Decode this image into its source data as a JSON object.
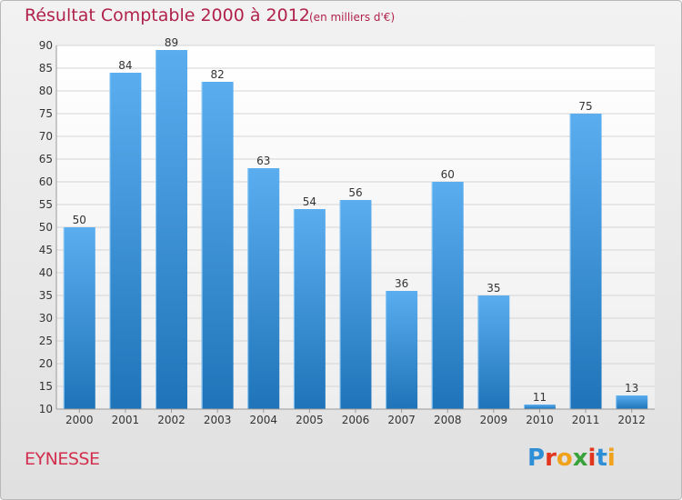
{
  "header": {
    "title": "Résultat Comptable 2000 à 2012",
    "subtitle": "(en milliers d'€)"
  },
  "footer": {
    "commune": "EYNESSE",
    "logo_letters": [
      "P",
      "r",
      "o",
      "x",
      "i",
      "t",
      "i"
    ],
    "logo_colors": [
      "#2f8fd6",
      "#e2351d",
      "#f0a21a",
      "#3aa23a",
      "#e2351d",
      "#2f8fd6",
      "#f0a21a"
    ]
  },
  "chart_data": {
    "type": "bar",
    "title": "Résultat Comptable 2000 à 2012",
    "subtitle": "(en milliers d'€)",
    "categories": [
      "2000",
      "2001",
      "2002",
      "2003",
      "2004",
      "2005",
      "2006",
      "2007",
      "2008",
      "2009",
      "2010",
      "2011",
      "2012"
    ],
    "values": [
      50,
      84,
      89,
      82,
      63,
      54,
      56,
      36,
      60,
      35,
      11,
      75,
      13
    ],
    "ylim": [
      10,
      90
    ],
    "yticks": [
      10,
      15,
      20,
      25,
      30,
      35,
      40,
      45,
      50,
      55,
      60,
      65,
      70,
      75,
      80,
      85,
      90
    ],
    "grid": true,
    "bar_color_top": "#5aaef0",
    "bar_color_bottom": "#1f73b8"
  }
}
